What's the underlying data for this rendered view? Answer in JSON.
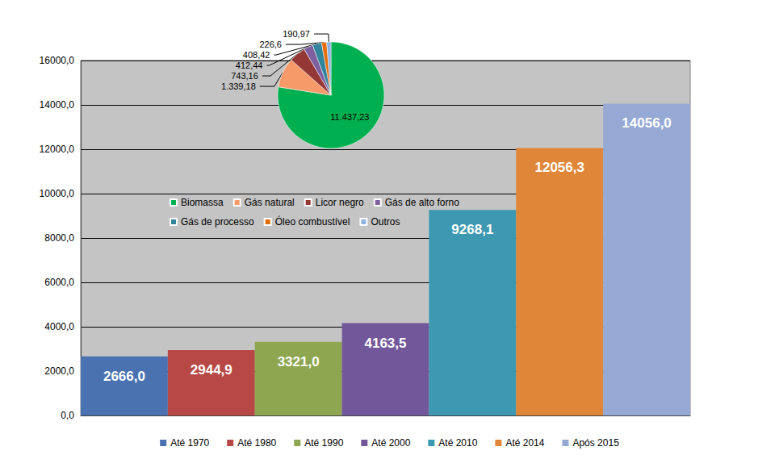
{
  "chart_data": [
    {
      "type": "bar",
      "categories": [
        "Até 1970",
        "Até 1980",
        "Até 1990",
        "Até 2000",
        "Até 2010",
        "Até 2014",
        "Após 2015"
      ],
      "values": [
        2666.0,
        2944.9,
        3321.0,
        4163.5,
        9268.1,
        12056.3,
        14056.0
      ],
      "value_labels": [
        "2666,0",
        "2944,9",
        "3321,0",
        "4163,5",
        "9268,1",
        "12056,3",
        "14056,0"
      ],
      "colors": [
        "#4a72b0",
        "#b84845",
        "#8da64f",
        "#72589a",
        "#3d98b2",
        "#e08638",
        "#96a9d5"
      ],
      "ylim": [
        0,
        16000
      ],
      "yticks": [
        {
          "value": 0,
          "label": "0,0"
        },
        {
          "value": 2000,
          "label": "2000,0"
        },
        {
          "value": 4000,
          "label": "4000,0"
        },
        {
          "value": 6000,
          "label": "6000,0"
        },
        {
          "value": 8000,
          "label": "8000,0"
        },
        {
          "value": 10000,
          "label": "10000,0"
        },
        {
          "value": 12000,
          "label": "12000,0"
        },
        {
          "value": 14000,
          "label": "14000,0"
        },
        {
          "value": 16000,
          "label": "16000,0"
        }
      ],
      "grid": true,
      "legend": "bottom",
      "data_labels": true,
      "tick_labels": "y"
    },
    {
      "type": "pie",
      "categories": [
        "Biomassa",
        "Gás natural",
        "Licor negro",
        "Gás de alto forno",
        "Gás de processo",
        "Óleo combustível",
        "Outros"
      ],
      "values": [
        11437.23,
        1339.18,
        743.16,
        412.44,
        408.42,
        226.6,
        190.97
      ],
      "value_labels": [
        "11.437,23",
        "1.339,18",
        "743,16",
        "412,44",
        "408,42",
        "226,6",
        "190,97"
      ],
      "colors": [
        "#00b050",
        "#f79a6a",
        "#953735",
        "#7f5fa0",
        "#31859c",
        "#e46c0a",
        "#8eb4e3"
      ],
      "legend": "left",
      "data_labels": true
    }
  ]
}
